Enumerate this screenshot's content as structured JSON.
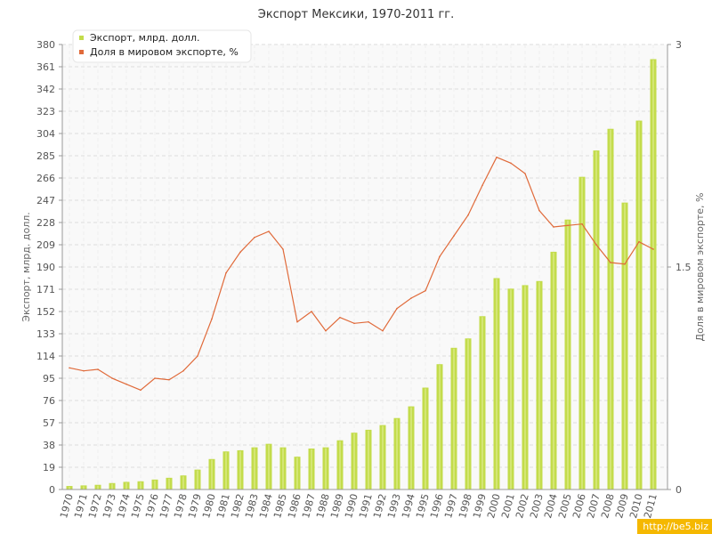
{
  "chart_data": {
    "type": "bar",
    "title": "Экспорт Мексики, 1970-2011 гг.",
    "ylabel": "Экспорт, млрд. долл.",
    "y2label": "Доля в мировом экспорте, %",
    "ylim": [
      0,
      380
    ],
    "y2lim": [
      0,
      3
    ],
    "yticks": [
      0,
      19,
      38,
      57,
      76,
      95,
      114,
      133,
      152,
      171,
      190,
      209,
      228,
      247,
      266,
      285,
      304,
      323,
      342,
      361,
      380
    ],
    "y2ticks": [
      0,
      1.5,
      3
    ],
    "grid": true,
    "legend_position": "top-left",
    "categories": [
      "1970",
      "1971",
      "1972",
      "1973",
      "1974",
      "1975",
      "1976",
      "1977",
      "1978",
      "1979",
      "1980",
      "1981",
      "1982",
      "1983",
      "1984",
      "1985",
      "1986",
      "1987",
      "1988",
      "1989",
      "1990",
      "1991",
      "1992",
      "1993",
      "1994",
      "1995",
      "1996",
      "1997",
      "1998",
      "1999",
      "2000",
      "2001",
      "2002",
      "2003",
      "2004",
      "2005",
      "2006",
      "2007",
      "2008",
      "2009",
      "2010",
      "2011"
    ],
    "series": [
      {
        "name": "Экспорт, млрд. долл.",
        "type": "bar",
        "axis": "left",
        "color": "#c3dc4b",
        "values": [
          3.0,
          3.5,
          4.0,
          5.5,
          6.5,
          7.0,
          8.5,
          10.0,
          12.0,
          17.0,
          26.0,
          32.5,
          33.5,
          36.0,
          39.0,
          36.0,
          28.0,
          35.0,
          36.0,
          42.0,
          48.5,
          51.0,
          55.0,
          61.0,
          71.0,
          87.0,
          107.0,
          121.0,
          129.0,
          148.0,
          180.5,
          171.5,
          174.5,
          178.0,
          203.0,
          230.5,
          267.0,
          289.5,
          308.0,
          245.0,
          315.0,
          367.5
        ]
      },
      {
        "name": "Доля в мировом экспорте, %",
        "type": "line",
        "axis": "right",
        "color": "#e06a3a",
        "values": [
          0.82,
          0.8,
          0.81,
          0.75,
          0.71,
          0.67,
          0.75,
          0.74,
          0.8,
          0.9,
          1.15,
          1.46,
          1.6,
          1.7,
          1.74,
          1.62,
          1.13,
          1.2,
          1.07,
          1.16,
          1.12,
          1.13,
          1.07,
          1.22,
          1.29,
          1.34,
          1.57,
          1.71,
          1.85,
          2.05,
          2.24,
          2.2,
          2.13,
          1.88,
          1.77,
          1.78,
          1.79,
          1.65,
          1.53,
          1.52,
          1.67,
          1.62
        ]
      }
    ]
  },
  "watermark": "http://be5.biz"
}
